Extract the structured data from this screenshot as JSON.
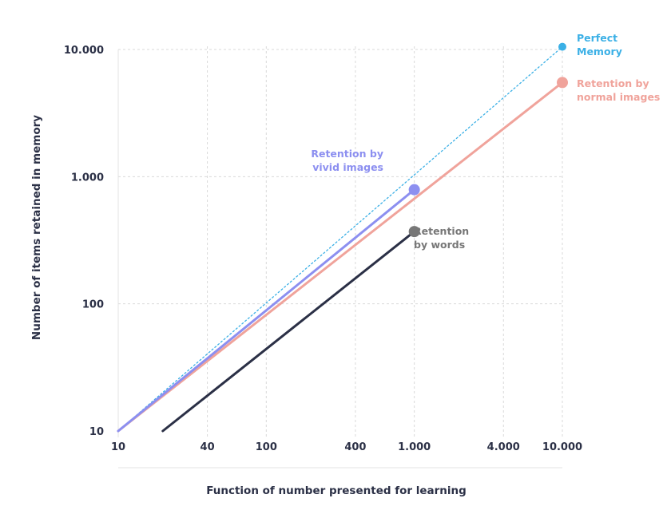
{
  "chart_data": {
    "type": "line",
    "xlabel": "Function of number presented for learning",
    "ylabel": "Number of items retained in memory",
    "x_scale": "log",
    "y_scale": "log",
    "xlim": [
      10,
      10000
    ],
    "ylim": [
      10,
      10000
    ],
    "grid": true,
    "x_ticks": [
      {
        "value": 10,
        "label": "10"
      },
      {
        "value": 40,
        "label": "40"
      },
      {
        "value": 100,
        "label": "100"
      },
      {
        "value": 400,
        "label": "400"
      },
      {
        "value": 1000,
        "label": "1.000"
      },
      {
        "value": 4000,
        "label": "4.000"
      },
      {
        "value": 10000,
        "label": "10.000"
      }
    ],
    "y_ticks": [
      {
        "value": 10,
        "label": "10"
      },
      {
        "value": 100,
        "label": "100"
      },
      {
        "value": 1000,
        "label": "1.000"
      },
      {
        "value": 10000,
        "label": "10.000"
      }
    ],
    "series": [
      {
        "label": [
          "Perfect",
          "Memory"
        ],
        "color": "#3bb0e6",
        "style": "dotted",
        "x": [
          10,
          10000
        ],
        "y": [
          10,
          10500
        ]
      },
      {
        "label": [
          "Retention by",
          "normal images"
        ],
        "color": "#f0a39b",
        "style": "solid",
        "x": [
          10,
          10000
        ],
        "y": [
          10,
          5500
        ]
      },
      {
        "label": [
          "Retention by",
          "vivid images"
        ],
        "color": "#8c8ff0",
        "style": "solid",
        "x": [
          10,
          1000
        ],
        "y": [
          10,
          790
        ]
      },
      {
        "label": [
          "Retention",
          "by words"
        ],
        "color": "#2b3046",
        "end_color": "#777777",
        "style": "solid",
        "x": [
          20,
          1000
        ],
        "y": [
          10,
          370
        ]
      }
    ]
  }
}
